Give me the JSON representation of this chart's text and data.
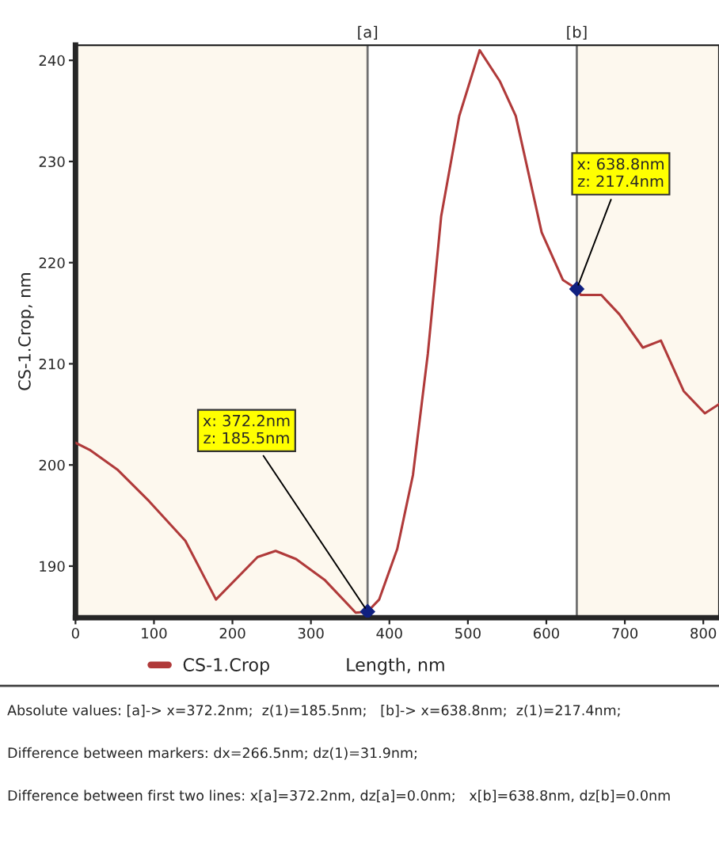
{
  "chart_data": {
    "type": "line",
    "xlabel": "Length, nm",
    "ylabel": "CS-1.Crop, nm",
    "x": [
      0,
      18,
      54,
      94,
      140,
      179,
      232,
      255,
      281,
      318,
      357,
      372.2,
      387,
      410,
      430,
      449,
      466,
      489,
      515,
      541,
      561,
      594,
      621,
      638.8,
      644,
      670,
      693,
      723,
      746,
      775,
      802,
      820
    ],
    "series": [
      {
        "name": "CS-1.Crop",
        "color": "#b03a3a",
        "values": [
          202.2,
          201.5,
          199.5,
          196.4,
          192.5,
          186.7,
          190.9,
          191.5,
          190.7,
          188.6,
          185.4,
          185.5,
          186.7,
          191.7,
          199,
          211,
          224.6,
          234.5,
          241,
          237.9,
          234.5,
          223,
          218.3,
          217.4,
          216.8,
          216.8,
          214.9,
          211.6,
          212.3,
          207.3,
          205.1,
          206
        ]
      }
    ],
    "xlim": [
      0,
      820
    ],
    "ylim": [
      184.9,
      241.5
    ],
    "xticks": [
      0,
      100,
      200,
      300,
      400,
      500,
      600,
      700,
      800
    ],
    "yticks": [
      190,
      200,
      210,
      220,
      230,
      240
    ],
    "ref_lines": [
      {
        "axis": "x",
        "value": 372.2,
        "label": "[a]",
        "color": "#707070"
      },
      {
        "axis": "x",
        "value": 638.8,
        "label": "[b]",
        "color": "#707070"
      }
    ],
    "bands": [
      {
        "axis": "x",
        "from": 0,
        "to": 372.2,
        "color": "#fdf8ee"
      },
      {
        "axis": "x",
        "from": 638.8,
        "to": 820,
        "color": "#fdf8ee"
      }
    ],
    "annotations": [
      {
        "text": "x: 372.2nm\nz: 185.5nm",
        "x": 372.2,
        "y": 185.5
      },
      {
        "text": "x: 638.8nm\nz: 217.4nm",
        "x": 638.8,
        "y": 217.4
      },
      "Absolute values: [a]-> x=372.2nm;  z(1)=185.5nm;   [b]-> x=638.8nm;  z(1)=217.4nm;",
      "Difference between markers: dx=266.5nm; dz(1)=31.9nm;",
      "Difference between first two lines: x[a]=372.2nm, dz[a]=0.0nm;   x[b]=638.8nm, dz[b]=0.0nm"
    ],
    "legend": "bottom left",
    "grid": false,
    "marker": "none",
    "line_style": "solid"
  }
}
